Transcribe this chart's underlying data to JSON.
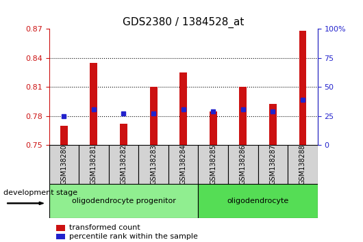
{
  "title": "GDS2380 / 1384528_at",
  "samples": [
    "GSM138280",
    "GSM138281",
    "GSM138282",
    "GSM138283",
    "GSM138284",
    "GSM138285",
    "GSM138286",
    "GSM138287",
    "GSM138288"
  ],
  "transformed_count": [
    0.77,
    0.835,
    0.772,
    0.81,
    0.825,
    0.785,
    0.81,
    0.793,
    0.868
  ],
  "percentile_rank": [
    0.78,
    0.787,
    0.783,
    0.783,
    0.787,
    0.785,
    0.787,
    0.785,
    0.797
  ],
  "ylim_left": [
    0.75,
    0.87
  ],
  "yticks_left": [
    0.75,
    0.78,
    0.81,
    0.84,
    0.87
  ],
  "ylim_right": [
    0,
    100
  ],
  "yticks_right": [
    0,
    25,
    50,
    75,
    100
  ],
  "yticklabels_right": [
    "0",
    "25",
    "50",
    "75",
    "100%"
  ],
  "bar_color": "#cc1111",
  "dot_color": "#2222cc",
  "bar_width": 0.25,
  "groups": [
    {
      "label": "oligodendrocyte progenitor",
      "start": 0,
      "end": 5,
      "color": "#90ee90"
    },
    {
      "label": "oligodendrocyte",
      "start": 5,
      "end": 9,
      "color": "#55dd55"
    }
  ],
  "development_stage_label": "development stage",
  "legend_items": [
    {
      "color": "#cc1111",
      "label": "transformed count"
    },
    {
      "color": "#2222cc",
      "label": "percentile rank within the sample"
    }
  ],
  "title_fontsize": 11,
  "tick_fontsize": 8,
  "left_tick_color": "#cc1111",
  "right_tick_color": "#2222cc",
  "sample_label_fontsize": 7,
  "group_label_fontsize": 8,
  "dev_stage_fontsize": 8,
  "legend_fontsize": 8
}
